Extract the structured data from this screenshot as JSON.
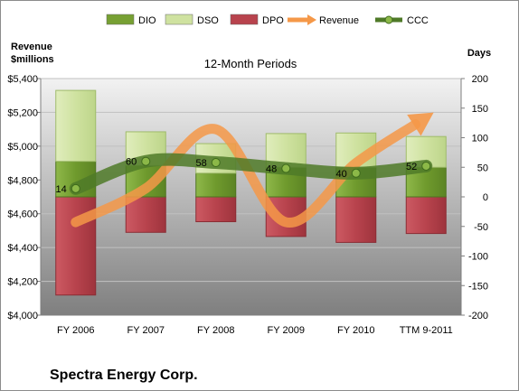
{
  "chart_data": {
    "type": "bar",
    "title": "12-Month Periods",
    "company": "Spectra Energy Corp.",
    "y_left_label": [
      "Revenue",
      "$millions"
    ],
    "y_right_label": "Days",
    "categories": [
      "FY 2006",
      "FY 2007",
      "FY 2008",
      "FY 2009",
      "FY 2010",
      "TTM 9-2011"
    ],
    "left_axis": {
      "min": 4000,
      "max": 5400,
      "step": 200,
      "tick_labels": [
        "$4,000",
        "$4,200",
        "$4,400",
        "$4,600",
        "$4,800",
        "$5,000",
        "$5,200",
        "$5,400"
      ]
    },
    "right_axis": {
      "min": -200,
      "max": 200,
      "step": 50,
      "tick_labels": [
        "-200",
        "-150",
        "-100",
        "-50",
        "0",
        "50",
        "100",
        "150",
        "200"
      ]
    },
    "legend": {
      "position": "top",
      "entries": [
        {
          "key": "DIO",
          "label": "DIO",
          "kind": "box",
          "color": "#77a033"
        },
        {
          "key": "DSO",
          "label": "DSO",
          "kind": "box",
          "color": "#cfe2a0"
        },
        {
          "key": "DPO",
          "label": "DPO",
          "kind": "box",
          "color": "#b8434d"
        },
        {
          "key": "Revenue",
          "label": "Revenue",
          "kind": "arrow",
          "color": "#f59848"
        },
        {
          "key": "CCC",
          "label": "CCC",
          "kind": "line-marker",
          "color": "#5a8a2a"
        }
      ]
    },
    "series": [
      {
        "name": "DIO",
        "axis": "right",
        "values": [
          60,
          53,
          40,
          50,
          50,
          50
        ]
      },
      {
        "name": "DSO",
        "axis": "right",
        "values": [
          120,
          57,
          50,
          57,
          58,
          52
        ]
      },
      {
        "name": "DPO",
        "axis": "right",
        "values": [
          -166,
          -60,
          -42,
          -67,
          -77,
          -62
        ]
      },
      {
        "name": "Revenue",
        "axis": "left",
        "values": [
          4550,
          4750,
          5100,
          4550,
          4900,
          5170
        ]
      },
      {
        "name": "CCC",
        "axis": "right",
        "values": [
          14,
          60,
          58,
          48,
          40,
          52
        ]
      }
    ],
    "ccc_labels": [
      "14",
      "60",
      "58",
      "48",
      "40",
      "52"
    ],
    "colors": {
      "plot_top": "#f2f2f2",
      "plot_bottom": "#7f7f7f",
      "gridline": "#c0c0c0",
      "ccc_line": "#4f7a28"
    }
  }
}
